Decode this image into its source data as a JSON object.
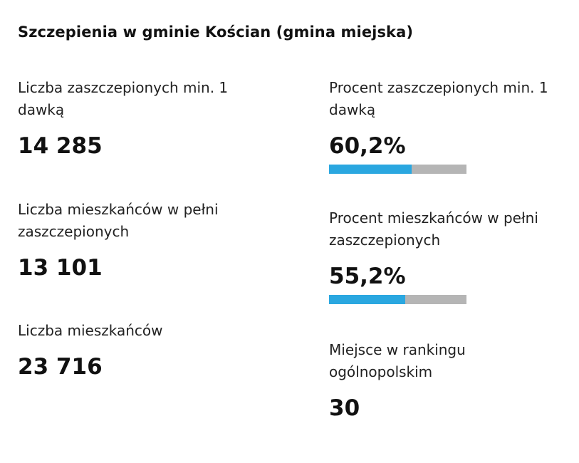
{
  "title": "Szczepienia w gminie Kościan (gmina miejska)",
  "left": {
    "vaccinated_one_dose": {
      "label": "Liczba zaszczepionych min. 1 dawką",
      "value": "14 285"
    },
    "fully_vaccinated": {
      "label": "Liczba mieszkańców w pełni zaszczepionych",
      "value": "13 101"
    },
    "residents": {
      "label": "Liczba mieszkańców",
      "value": "23 716"
    }
  },
  "right": {
    "percent_one_dose": {
      "label": "Procent zaszczepionych min. 1 dawką",
      "value": "60,2%",
      "progress": 0.602
    },
    "percent_fully": {
      "label": "Procent mieszkańców w pełni zaszczepionych",
      "value": "55,2%",
      "progress": 0.552
    },
    "ranking": {
      "label": "Miejsce w rankingu ogólnopolskim",
      "value": "30"
    }
  },
  "colors": {
    "bar_fill": "#2aa7e0",
    "bar_track": "#b5b5b5"
  }
}
